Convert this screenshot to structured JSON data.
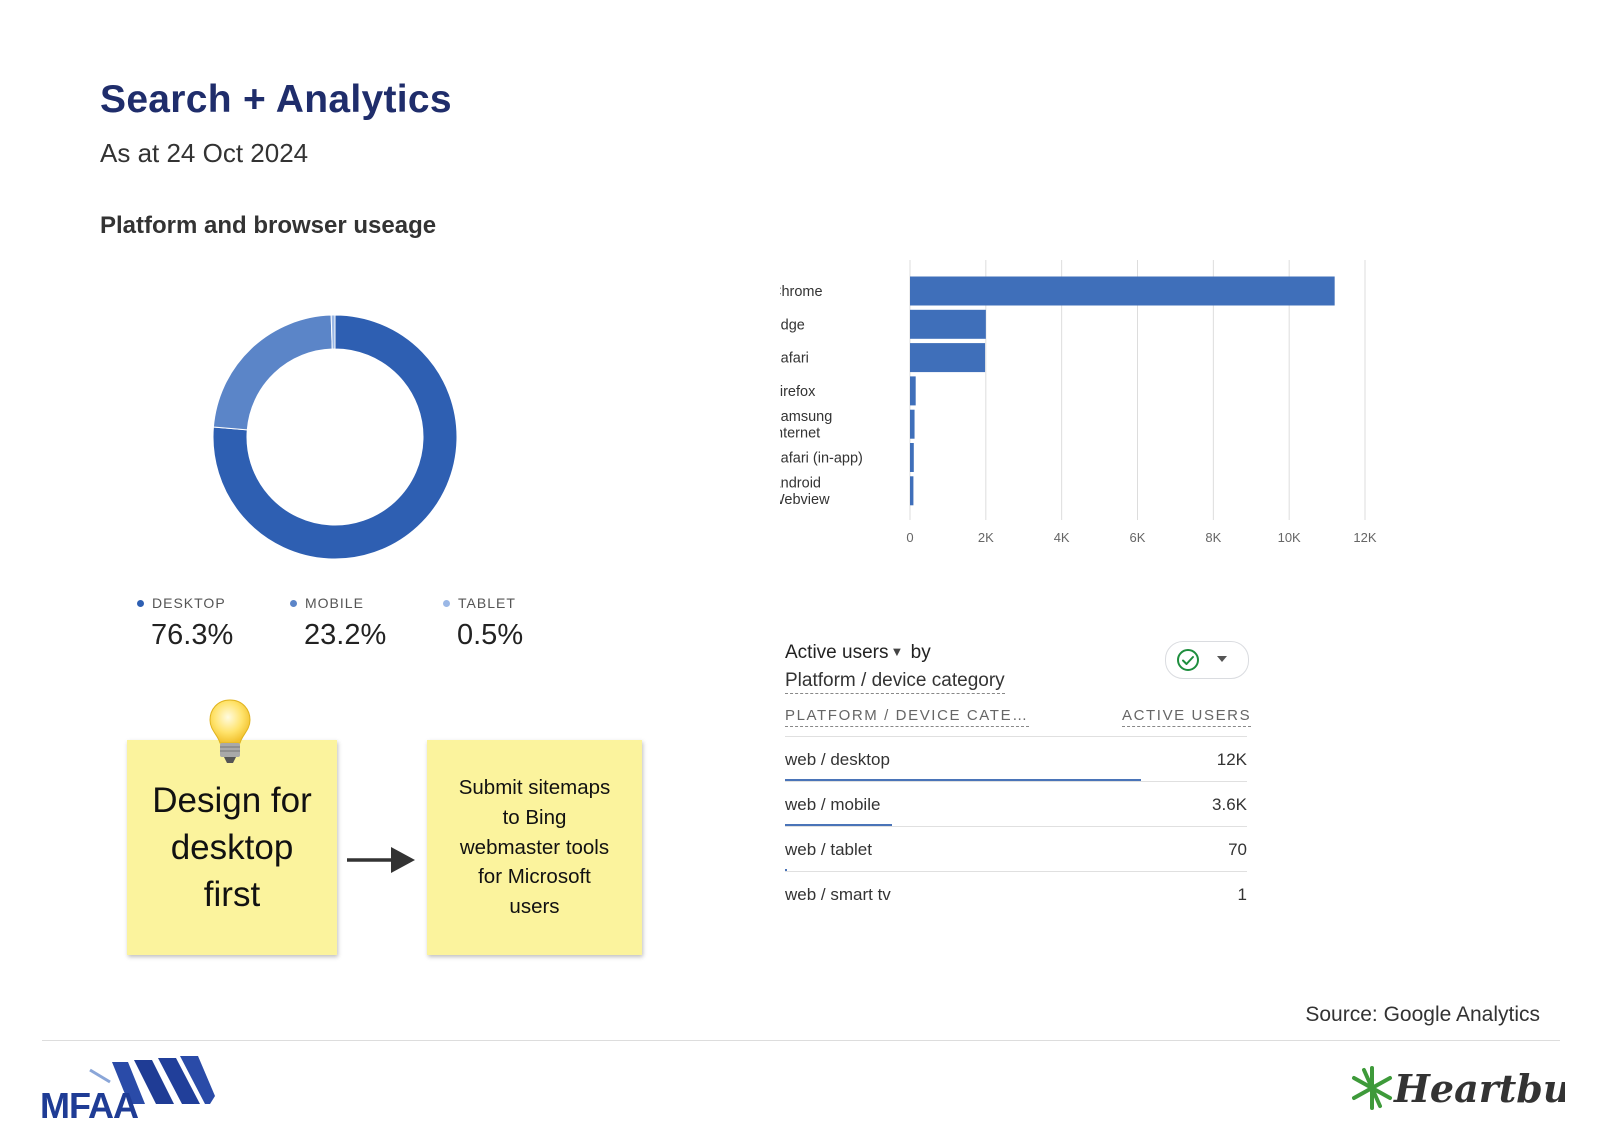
{
  "header": {
    "title": "Search + Analytics",
    "subtitle": "As at 24 Oct 2024",
    "section_heading": "Platform and browser useage"
  },
  "chart_data": [
    {
      "type": "pie",
      "variant": "donut",
      "categories": [
        "DESKTOP",
        "MOBILE",
        "TABLET"
      ],
      "values": [
        76.3,
        23.2,
        0.5
      ],
      "value_labels": [
        "76.3%",
        "23.2%",
        "0.5%"
      ],
      "colors": [
        "#2e5fb2",
        "#5b85c8",
        "#9bb8e6"
      ],
      "legend_position": "bottom"
    },
    {
      "type": "bar",
      "orientation": "horizontal",
      "categories": [
        "Chrome",
        "Edge",
        "Safari",
        "Firefox",
        "Samsung Internet",
        "Safari (in-app)",
        "Android Webview"
      ],
      "category_label_lines": [
        [
          "Chrome"
        ],
        [
          "Edge"
        ],
        [
          "Safari"
        ],
        [
          "Firefox"
        ],
        [
          "Samsung",
          "Internet"
        ],
        [
          "Safari (in-app)"
        ],
        [
          "Android",
          "Webview"
        ]
      ],
      "values": [
        11200,
        2000,
        1980,
        150,
        120,
        100,
        90
      ],
      "xlim": [
        0,
        12000
      ],
      "x_ticks": [
        0,
        2000,
        4000,
        6000,
        8000,
        10000,
        12000
      ],
      "x_tick_labels": [
        "0",
        "2K",
        "4K",
        "6K",
        "8K",
        "10K",
        "12K"
      ],
      "grid": true,
      "bar_color": "#3f6fba"
    },
    {
      "type": "table",
      "title_metric": "Active users",
      "title_by": "by",
      "title_dimension": "Platform / device category",
      "columns": [
        "PLATFORM / DEVICE CATE…",
        "ACTIVE USERS"
      ],
      "rows": [
        {
          "name": "web / desktop",
          "display": "12K",
          "value": 12000
        },
        {
          "name": "web / mobile",
          "display": "3.6K",
          "value": 3600
        },
        {
          "name": "web / tablet",
          "display": "70",
          "value": 70
        },
        {
          "name": "web / smart tv",
          "display": "1",
          "value": 1
        }
      ],
      "bar_color": "#4a74b8"
    }
  ],
  "notes": {
    "design_note": "Design for\ndesktop\nfirst",
    "sitemaps_note": "Submit sitemaps\nto Bing\nwebmaster tools\nfor Microsoft\nusers"
  },
  "footer": {
    "source": "Source: Google Analytics",
    "logo_left": "MFAA",
    "logo_right": "Heartburst"
  },
  "colors": {
    "title": "#1f2d6b",
    "sticky": "#fbf39d",
    "accent_green": "#1e8e3e"
  }
}
